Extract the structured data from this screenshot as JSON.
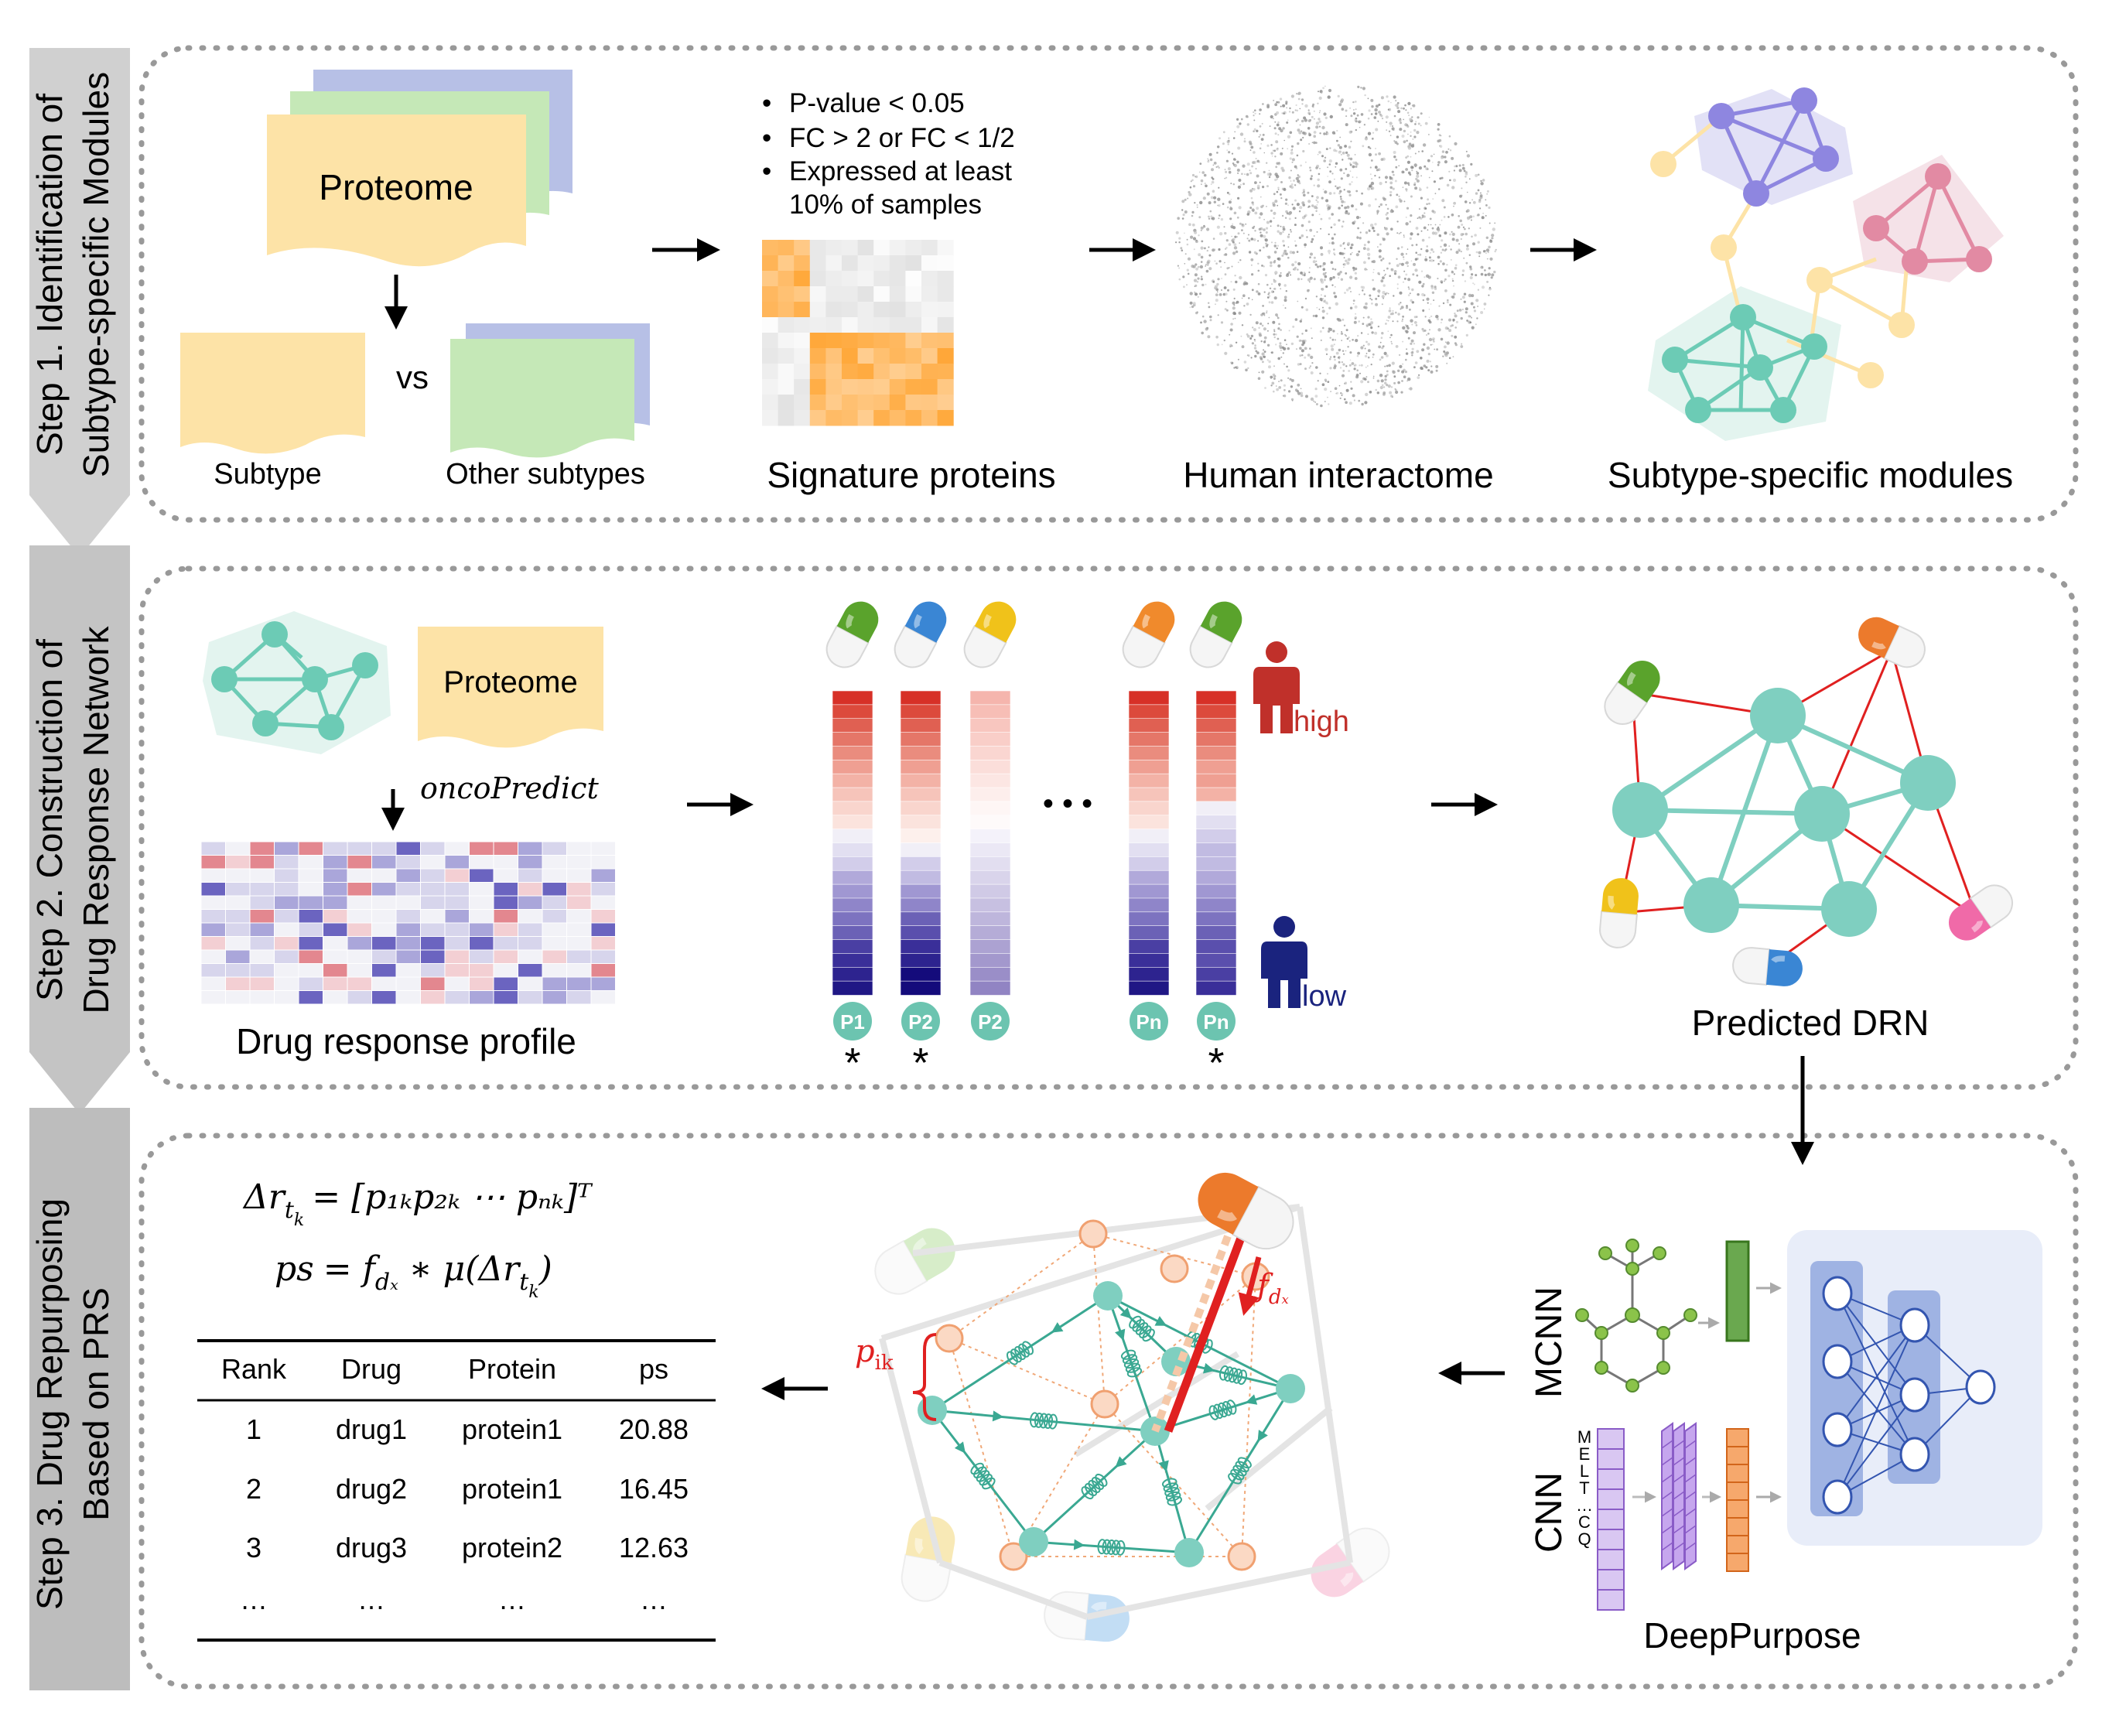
{
  "steps": [
    {
      "line1": "Step 1. Identification of",
      "line2": "Subtype-specific Modules"
    },
    {
      "line1": "Step 2. Construction of",
      "line2": "Drug Response Network"
    },
    {
      "line1": "Step 3. Drug Repurposing",
      "line2": "Based on PRS"
    }
  ],
  "step1": {
    "proteome_label": "Proteome",
    "vs_label": "vs",
    "subtype_label": "Subtype",
    "other_subtypes_label": "Other subtypes",
    "criteria": [
      "P-value  < 0.05",
      "FC > 2 or FC < 1/2",
      "Expressed   at   least",
      "10% of samples"
    ],
    "signature_label": "Signature proteins",
    "interactome_label": "Human interactome",
    "modules_label": "Subtype-specific modules"
  },
  "step2": {
    "proteome_label": "Proteome",
    "method_label": "oncoPredict",
    "profile_label": "Drug response profile",
    "patient_labels": [
      "P1",
      "P2",
      "P2",
      "Pn",
      "Pn"
    ],
    "ellipsis": "• • •",
    "asterisk": "*",
    "high_label": "high",
    "low_label": "low",
    "drn_label": "Predicted DRN"
  },
  "step3": {
    "formula1_lhs": "Δr",
    "formula1_sub": "t",
    "formula1_subsub": "k",
    "formula1_rhs": "= [p₁ₖp₂ₖ ⋯ pₙₖ]ᵀ",
    "formula2_lhs": "ps",
    "formula2_eq": "= f",
    "formula2_sub": "dₓ",
    "formula2_mid": " ∗ μ(Δr",
    "formula2_close": ")",
    "table": {
      "headers": [
        "Rank",
        "Drug",
        "Protein",
        "ps"
      ],
      "rows": [
        [
          "1",
          "drug1",
          "protein1",
          "20.88"
        ],
        [
          "2",
          "drug2",
          "protein1",
          "16.45"
        ],
        [
          "3",
          "drug3",
          "protein2",
          "12.63"
        ],
        [
          "…",
          "…",
          "…",
          "…"
        ]
      ]
    },
    "p_ik_label": "p",
    "p_ik_sub": "ik",
    "f_dx_label": "f",
    "f_dx_sub": "dₓ",
    "mcnn_label": "MCNN",
    "cnn_label": "CNN",
    "seq_letters": [
      "M",
      "E",
      "L",
      "T",
      "…",
      "C",
      "Q"
    ],
    "deeppurpose_label": "DeepPurpose"
  },
  "colors": {
    "teal": "#7fcfc0",
    "teal_dark": "#3aa892",
    "yellow": "#fde3a7",
    "green_doc": "#c5e8b7",
    "blue_doc": "#b7c0e6",
    "red_edge": "#e02020",
    "purple_module": "#8e86e0",
    "pink_module": "#e28aa3",
    "step_bar": "#c8c8c8"
  }
}
